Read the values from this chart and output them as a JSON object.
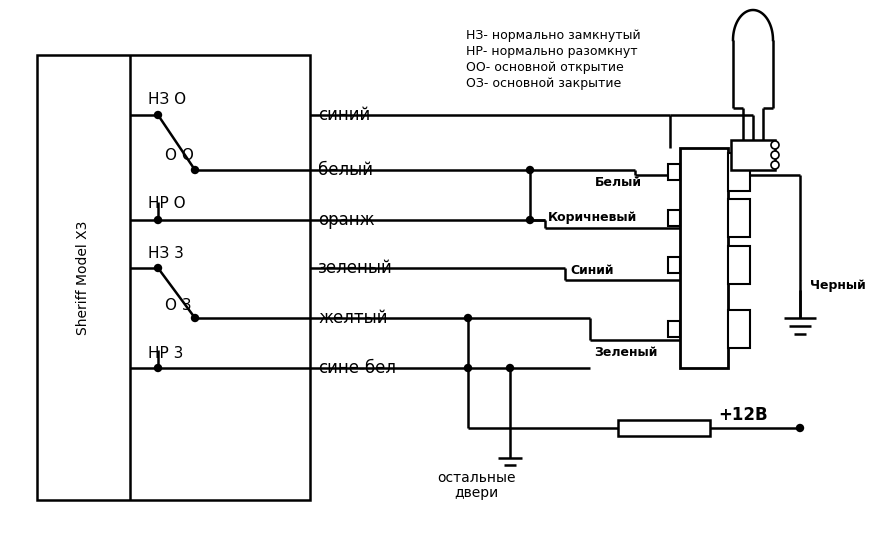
{
  "bg_color": "#ffffff",
  "line_color": "#000000",
  "text_color": "#000000",
  "legend_text": [
    "НЗ- нормально замкнутый",
    "НР- нормально разомкнут",
    "ОО- основной открытие",
    "ОЗ- основной закрытие"
  ],
  "box_label": "Sheriff Model X3",
  "wire_labels": [
    "синий",
    "белый",
    "оранж",
    "зеленый",
    "желтый",
    "сине-бел"
  ],
  "switch_labels": [
    "НЗ О",
    "О О",
    "НР О",
    "НЗ 3",
    "О 3",
    "НР 3"
  ],
  "connector_labels": [
    "Белый",
    "Коричневый",
    "Синий",
    "Зеленый"
  ],
  "black_label": "Черный",
  "bottom_label1": "остальные",
  "bottom_label2": "двери",
  "voltage_label": "+12В",
  "figsize": [
    8.84,
    5.58
  ],
  "dpi": 100
}
